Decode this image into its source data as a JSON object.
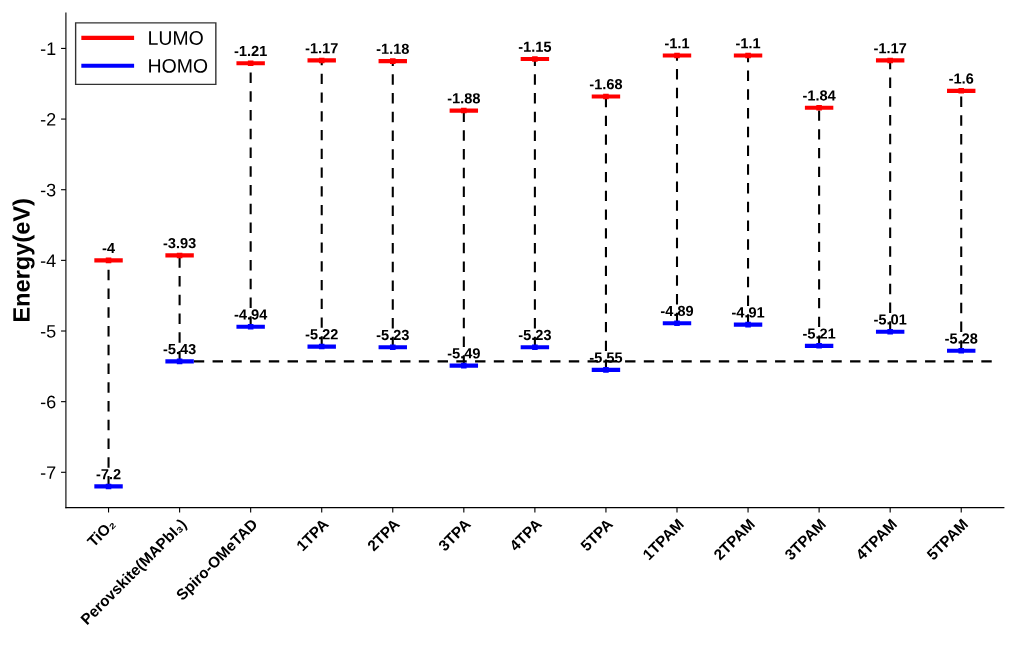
{
  "chart_data": {
    "type": "scatter",
    "ylabel": "Energy(eV)",
    "categories": [
      "TiO₂",
      "Perovskite(MAPbI₃)",
      "Spiro-OMeTAD",
      "1TPA",
      "2TPA",
      "3TPA",
      "4TPA",
      "5TPA",
      "1TPAM",
      "2TPAM",
      "3TPAM",
      "4TPAM",
      "5TPAM"
    ],
    "series": [
      {
        "name": "LUMO",
        "color": "#ff0000",
        "values": [
          -4,
          -3.93,
          -1.21,
          -1.17,
          -1.18,
          -1.88,
          -1.15,
          -1.68,
          -1.1,
          -1.1,
          -1.84,
          -1.17,
          -1.6
        ]
      },
      {
        "name": "HOMO",
        "color": "#0000ff",
        "values": [
          -7.2,
          -5.43,
          -4.94,
          -5.22,
          -5.23,
          -5.49,
          -5.23,
          -5.55,
          -4.89,
          -4.91,
          -5.21,
          -5.01,
          -5.28
        ]
      }
    ],
    "ylim": [
      -7.5,
      -0.5
    ],
    "yticks": [
      -7,
      -6,
      -5,
      -4,
      -3,
      -2,
      -1
    ],
    "ref_lines": [
      {
        "axis": "y",
        "value": -5.43,
        "line_style": "dashed",
        "color": "#000000"
      }
    ],
    "data_labels": true,
    "legend": "top left",
    "marker": "square"
  }
}
